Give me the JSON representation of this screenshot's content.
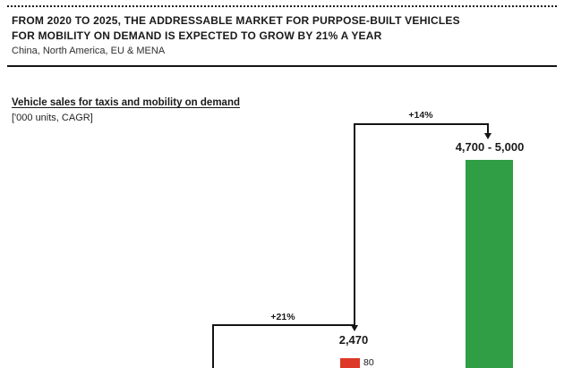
{
  "header": {
    "title_line1": "FROM 2020 TO 2025, THE ADDRESSABLE MARKET FOR PURPOSE-BUILT VEHICLES",
    "title_line2": "FOR MOBILITY ON DEMAND IS EXPECTED TO GROW BY 21% A YEAR",
    "subtitle": "China, North America, EU & MENA"
  },
  "chart_data": {
    "type": "bar",
    "title": "Vehicle sales for taxis and mobility on demand",
    "unit_label": "['000 units, CAGR]",
    "unit": "'000 units",
    "metric": "CAGR",
    "bars": [
      {
        "total_label": "2,470",
        "total_value": 2470,
        "top_segment": {
          "label": "80",
          "value": 80
        }
      },
      {
        "total_label": "4,700 - 5,000",
        "value_low": 4700,
        "value_high": 5000
      }
    ],
    "growth_annotations": [
      {
        "label": "+21%",
        "value_pct": 21,
        "points_to": "2,470"
      },
      {
        "label": "+14%",
        "value_pct": 14,
        "from": "2,470",
        "points_to": "4,700 - 5,000"
      }
    ]
  },
  "colors": {
    "green_bar": "#2f9e44",
    "red_segment": "#dd3827",
    "line": "#141414"
  }
}
